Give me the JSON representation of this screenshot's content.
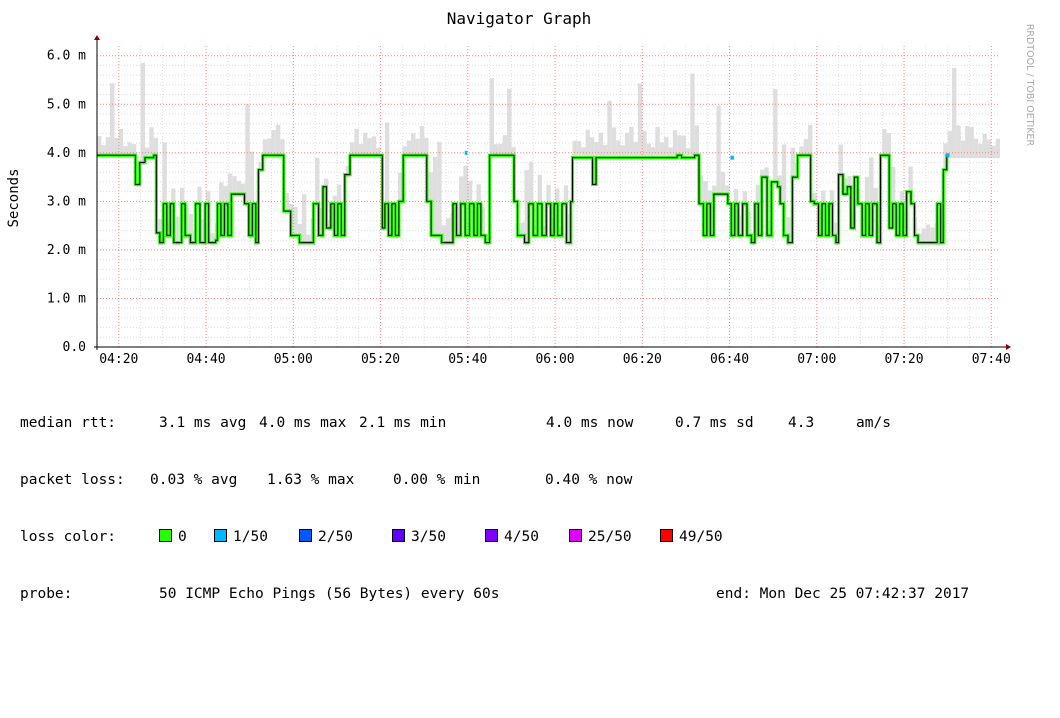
{
  "chart_data": {
    "type": "line",
    "title": "Navigator Graph",
    "ylabel": "Seconds",
    "side_label": "RRDTOOL / TOBI OETIKER",
    "ylim": [
      0,
      6.2
    ],
    "y_ticks": [
      {
        "v": 0,
        "label": "0.0"
      },
      {
        "v": 1,
        "label": "1.0 m"
      },
      {
        "v": 2,
        "label": "2.0 m"
      },
      {
        "v": 3,
        "label": "3.0 m"
      },
      {
        "v": 4,
        "label": "4.0 m"
      },
      {
        "v": 5,
        "label": "5.0 m"
      },
      {
        "v": 6,
        "label": "6.0 m"
      }
    ],
    "x_range_min": [
      255,
      462
    ],
    "x_ticks": [
      {
        "v": 260,
        "label": "04:20"
      },
      {
        "v": 280,
        "label": "04:40"
      },
      {
        "v": 300,
        "label": "05:00"
      },
      {
        "v": 320,
        "label": "05:20"
      },
      {
        "v": 340,
        "label": "05:40"
      },
      {
        "v": 360,
        "label": "06:00"
      },
      {
        "v": 380,
        "label": "06:20"
      },
      {
        "v": 400,
        "label": "06:40"
      },
      {
        "v": 420,
        "label": "07:00"
      },
      {
        "v": 440,
        "label": "07:20"
      },
      {
        "v": 460,
        "label": "07:40"
      }
    ],
    "grid": true,
    "median_rtt_ms": [
      [
        255,
        3.95
      ],
      [
        263,
        3.95
      ],
      [
        263.8,
        3.35
      ],
      [
        264.8,
        3.8
      ],
      [
        266,
        3.9
      ],
      [
        268,
        3.95
      ],
      [
        268.6,
        2.35
      ],
      [
        269.4,
        2.15
      ],
      [
        270.2,
        2.95
      ],
      [
        271,
        2.3
      ],
      [
        271.8,
        2.95
      ],
      [
        272.6,
        2.15
      ],
      [
        274.4,
        2.95
      ],
      [
        275.2,
        2.3
      ],
      [
        276.4,
        2.15
      ],
      [
        277.6,
        2.95
      ],
      [
        278.6,
        2.15
      ],
      [
        279.8,
        2.95
      ],
      [
        280.6,
        2.15
      ],
      [
        282.2,
        2.2
      ],
      [
        282.6,
        2.95
      ],
      [
        283.4,
        2.3
      ],
      [
        284.2,
        2.95
      ],
      [
        285,
        2.3
      ],
      [
        285.8,
        3.15
      ],
      [
        288.2,
        3.15
      ],
      [
        288.8,
        2.95
      ],
      [
        289.8,
        2.3
      ],
      [
        290.6,
        2.95
      ],
      [
        291.4,
        2.15
      ],
      [
        292,
        3.65
      ],
      [
        293,
        3.95
      ],
      [
        297,
        3.95
      ],
      [
        297.8,
        2.8
      ],
      [
        299.4,
        2.3
      ],
      [
        301.4,
        2.15
      ],
      [
        304,
        2.15
      ],
      [
        304.6,
        2.95
      ],
      [
        305.8,
        2.3
      ],
      [
        306.8,
        3.3
      ],
      [
        307.6,
        2.45
      ],
      [
        308.6,
        2.95
      ],
      [
        309.4,
        2.3
      ],
      [
        310.2,
        2.95
      ],
      [
        311,
        2.3
      ],
      [
        311.8,
        3.55
      ],
      [
        313,
        3.95
      ],
      [
        318,
        3.95
      ],
      [
        320,
        3.95
      ],
      [
        320.4,
        2.45
      ],
      [
        321,
        2.95
      ],
      [
        321.8,
        2.3
      ],
      [
        322.6,
        2.95
      ],
      [
        323.4,
        2.3
      ],
      [
        324.2,
        3.0
      ],
      [
        325.2,
        3.95
      ],
      [
        330,
        3.95
      ],
      [
        330.6,
        3.0
      ],
      [
        331.6,
        2.3
      ],
      [
        334,
        2.15
      ],
      [
        336,
        2.15
      ],
      [
        336.6,
        2.95
      ],
      [
        337.4,
        2.3
      ],
      [
        338.4,
        2.95
      ],
      [
        339.4,
        2.3
      ],
      [
        340.4,
        2.95
      ],
      [
        341.4,
        2.3
      ],
      [
        342.2,
        2.95
      ],
      [
        343,
        2.3
      ],
      [
        344,
        2.15
      ],
      [
        345,
        3.95
      ],
      [
        350,
        3.95
      ],
      [
        350.6,
        3.0
      ],
      [
        351.4,
        2.3
      ],
      [
        353,
        2.15
      ],
      [
        354,
        2.95
      ],
      [
        355,
        2.3
      ],
      [
        356,
        2.95
      ],
      [
        357,
        2.3
      ],
      [
        358,
        2.95
      ],
      [
        359,
        2.3
      ],
      [
        359.8,
        2.95
      ],
      [
        360.6,
        2.3
      ],
      [
        361.6,
        2.95
      ],
      [
        362.6,
        2.15
      ],
      [
        363.6,
        3.0
      ],
      [
        364,
        3.9
      ],
      [
        368,
        3.9
      ],
      [
        368.6,
        3.35
      ],
      [
        369.4,
        3.9
      ],
      [
        372,
        3.9
      ],
      [
        380,
        3.9
      ],
      [
        384,
        3.9
      ],
      [
        388,
        3.95
      ],
      [
        389,
        3.9
      ],
      [
        392,
        3.95
      ],
      [
        393,
        2.95
      ],
      [
        394,
        2.3
      ],
      [
        394.8,
        2.95
      ],
      [
        395.6,
        2.3
      ],
      [
        396.4,
        3.15
      ],
      [
        399,
        3.15
      ],
      [
        399.6,
        2.95
      ],
      [
        400.4,
        2.3
      ],
      [
        401.2,
        2.95
      ],
      [
        402,
        2.3
      ],
      [
        403,
        2.95
      ],
      [
        404,
        2.3
      ],
      [
        405,
        2.15
      ],
      [
        405.8,
        2.95
      ],
      [
        406.6,
        2.3
      ],
      [
        407.4,
        3.5
      ],
      [
        408.6,
        2.3
      ],
      [
        409.6,
        3.4
      ],
      [
        411,
        3.3
      ],
      [
        411.6,
        2.95
      ],
      [
        412.4,
        2.3
      ],
      [
        413.4,
        2.15
      ],
      [
        414.4,
        3.5
      ],
      [
        415.6,
        3.95
      ],
      [
        418,
        3.95
      ],
      [
        418.6,
        3.0
      ],
      [
        419.4,
        2.95
      ],
      [
        420.4,
        2.3
      ],
      [
        421.2,
        2.95
      ],
      [
        422,
        2.3
      ],
      [
        422.8,
        2.95
      ],
      [
        423.6,
        2.3
      ],
      [
        424.4,
        2.15
      ],
      [
        425,
        3.55
      ],
      [
        426,
        3.15
      ],
      [
        427,
        3.3
      ],
      [
        427.8,
        2.45
      ],
      [
        428.6,
        3.5
      ],
      [
        429.4,
        2.95
      ],
      [
        430.4,
        2.3
      ],
      [
        431.2,
        2.95
      ],
      [
        432,
        2.3
      ],
      [
        432.8,
        2.95
      ],
      [
        433.8,
        2.15
      ],
      [
        434.6,
        3.95
      ],
      [
        436,
        3.95
      ],
      [
        436.6,
        2.45
      ],
      [
        437.4,
        2.95
      ],
      [
        438.2,
        2.3
      ],
      [
        439,
        2.95
      ],
      [
        439.8,
        2.3
      ],
      [
        440.6,
        3.2
      ],
      [
        441.6,
        2.95
      ],
      [
        442.4,
        2.3
      ],
      [
        443.2,
        2.15
      ],
      [
        447,
        2.15
      ],
      [
        447.6,
        2.95
      ],
      [
        448.4,
        2.15
      ],
      [
        449,
        3.65
      ],
      [
        449.8,
        3.95
      ],
      [
        450.4,
        3.95
      ]
    ],
    "loss_colors": [
      {
        "label": "0",
        "color": "#26ff00"
      },
      {
        "label": "1/50",
        "color": "#00b8ff"
      },
      {
        "label": "2/50",
        "color": "#0059ff"
      },
      {
        "label": "3/50",
        "color": "#5e00ff"
      },
      {
        "label": "4/50",
        "color": "#7e00ff"
      },
      {
        "label": "25/50",
        "color": "#dd00ff"
      },
      {
        "label": "49/50",
        "color": "#ff0000"
      }
    ]
  },
  "stats": {
    "rtt_label": "median rtt:",
    "rtt_values": [
      {
        "value": "3.1 ms avg"
      },
      {
        "value": "4.0 ms max"
      },
      {
        "value": "2.1 ms min"
      },
      {
        "value": "4.0 ms now"
      },
      {
        "value": "0.7 ms sd"
      },
      {
        "value": "4.3"
      },
      {
        "value": "am/s"
      }
    ],
    "loss_label": "packet loss:",
    "loss_values": [
      {
        "value": "0.03 % avg"
      },
      {
        "value": "1.63 % max"
      },
      {
        "value": "0.00 % min"
      },
      {
        "value": "0.40 % now"
      }
    ],
    "color_label": "loss color:",
    "probe_label": "probe:",
    "probe_text": "50 ICMP Echo Pings (56 Bytes) every 60s",
    "end_text": "end: Mon Dec 25 07:42:37 2017"
  },
  "colors": {
    "background": "#ffffff",
    "major_grid": "#ff8080",
    "minor_grid": "#dddddd",
    "smoke": "#dedede",
    "line": "#000000"
  }
}
